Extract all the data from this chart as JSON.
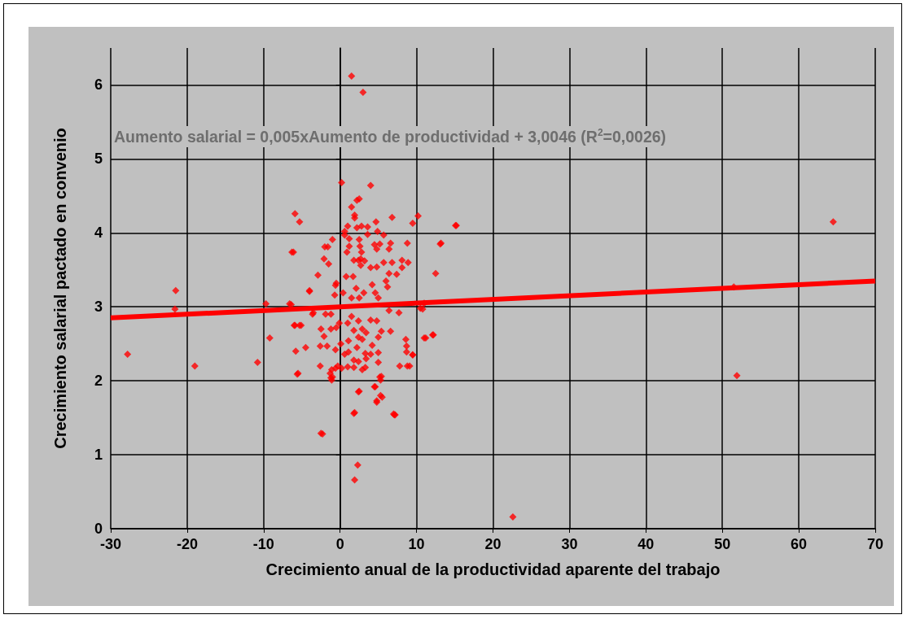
{
  "chart_data": {
    "type": "scatter",
    "xlabel": "Crecimiento anual de la productividad aparente del trabajo",
    "ylabel": "Crecimiento salarial pactado en convenio",
    "annotations": [
      "Aumento salarial = 0,005xAumento de productividad + 3,0046 (R$^{2}$=0,0026)"
    ],
    "xlim": [
      -30,
      70
    ],
    "xticks": [
      -30,
      -20,
      -10,
      0,
      10,
      20,
      30,
      40,
      50,
      60,
      70
    ],
    "ylim": [
      0,
      6.5
    ],
    "yticks": [
      0,
      1,
      2,
      3,
      4,
      5,
      6
    ],
    "grid": true,
    "marker": "diamond",
    "series": [
      {
        "color": "#ff0000",
        "x": [
          -27.8,
          -21.5,
          -21.6,
          -19,
          -10.8,
          -9.2,
          -9.7,
          -6.3,
          -6.6,
          -6,
          -5.3,
          -5.5,
          -4,
          -3.5,
          -2.5,
          -2.3,
          1.5,
          3,
          15.2,
          13.2,
          11,
          10.5,
          11.2,
          12.2,
          9.5,
          8.8,
          22.6,
          51.5,
          51.9,
          64.5,
          2.3,
          1.9,
          7,
          7.2,
          1.9,
          2.5,
          4.8,
          5.3,
          4.5,
          5.2,
          -1,
          -0.3,
          0.2,
          4,
          2.5,
          2.2,
          1.5,
          1.9,
          1.9,
          -5.9,
          -5.3,
          6.8,
          10.2,
          9.5,
          15.1,
          1,
          0.6,
          2.2,
          2.8,
          3.6,
          4.7,
          4.9,
          5.7,
          -1,
          0.6,
          1.2,
          1.2,
          0.9,
          -2,
          -1.6,
          3.6,
          2.5,
          2.6,
          2.8,
          2.7,
          4.5,
          5.2,
          4.8,
          6.6,
          6.4,
          8.8,
          13.1,
          -6.1,
          -2.1,
          -1.5,
          1.8,
          2.4,
          3.2,
          2.7,
          4,
          4.8,
          5.7,
          6.8,
          8.1,
          8.9,
          8.1,
          12.5,
          -2.9,
          -0.5,
          -0.6,
          0.8,
          1.7,
          2.1,
          4.2,
          6.4,
          7.4,
          6,
          6.2,
          -4,
          -0.7,
          0.4,
          1.5,
          3.1,
          4.6,
          5,
          2.5,
          -6.4,
          -3.6,
          -1.9,
          -1.2,
          1.5,
          6.4,
          7.7,
          10.8,
          -5.9,
          -5.1,
          -2.5,
          -1.2,
          -0.1,
          1,
          2.4,
          4,
          4.8,
          -0.5,
          1.8,
          2.9,
          3.4,
          5.4,
          6.6,
          -2.1,
          1.1,
          2.4,
          2.9,
          4.2,
          5,
          8.6,
          11,
          12.1,
          -2.6,
          -1.7,
          -0.6,
          0.1,
          1.1,
          0.6,
          2.2,
          3.3,
          4,
          5,
          8.7,
          8.7,
          9.5,
          -5.8,
          -4.5,
          1.8,
          2.4,
          3.4,
          5,
          2.9,
          3.3,
          1.8,
          -2.6,
          -1.1,
          -0.6,
          0.2,
          1,
          7.8,
          9.1,
          -5.6,
          -1.3,
          -1.2,
          -1.1,
          5.4,
          5.3,
          2.4,
          4.6,
          5.5,
          4.8,
          1.8,
          7.1
        ],
        "values": [
          2.36,
          3.22,
          2.97,
          2.2,
          2.25,
          2.58,
          3.04,
          3.74,
          3.04,
          2.75,
          2.75,
          2.1,
          3.22,
          2.92,
          1.29,
          1.28,
          6.12,
          5.9,
          4.1,
          3.86,
          3.05,
          2.98,
          2.58,
          2.62,
          2.35,
          2.2,
          0.16,
          3.27,
          2.07,
          4.15,
          0.86,
          0.66,
          1.55,
          1.54,
          1.57,
          1.86,
          1.73,
          1.8,
          1.92,
          2.05,
          2.05,
          2.2,
          4.68,
          4.64,
          4.46,
          4.44,
          4.35,
          4.24,
          4.2,
          4.26,
          4.15,
          4.21,
          4.23,
          4.13,
          4.1,
          4.09,
          4.02,
          4.07,
          4.09,
          4.08,
          4.15,
          4.02,
          3.97,
          3.91,
          3.97,
          3.92,
          3.82,
          3.74,
          3.81,
          3.81,
          3.98,
          3.91,
          3.82,
          3.74,
          3.65,
          3.84,
          3.85,
          3.78,
          3.86,
          3.78,
          3.86,
          3.85,
          3.74,
          3.65,
          3.58,
          3.63,
          3.63,
          3.62,
          3.56,
          3.53,
          3.54,
          3.6,
          3.6,
          3.63,
          3.6,
          3.53,
          3.45,
          3.43,
          3.32,
          3.29,
          3.41,
          3.41,
          3.25,
          3.3,
          3.45,
          3.44,
          3.35,
          3.27,
          3.21,
          3.16,
          3.19,
          3.12,
          3.19,
          3.19,
          3.12,
          3.12,
          3.03,
          2.9,
          2.9,
          2.9,
          2.87,
          2.95,
          2.92,
          2.97,
          2.75,
          2.75,
          2.7,
          2.7,
          2.78,
          2.78,
          2.81,
          2.82,
          2.81,
          2.72,
          2.68,
          2.7,
          2.65,
          2.67,
          2.67,
          2.6,
          2.54,
          2.59,
          2.56,
          2.48,
          2.59,
          2.56,
          2.58,
          2.62,
          2.47,
          2.47,
          2.42,
          2.5,
          2.39,
          2.36,
          2.45,
          2.37,
          2.36,
          2.38,
          2.47,
          2.39,
          2.35,
          2.4,
          2.45,
          2.28,
          2.26,
          2.3,
          2.25,
          2.15,
          2.18,
          2.18,
          2.2,
          2.15,
          2.17,
          2.17,
          2.19,
          2.2,
          2.2,
          2.09,
          2.1,
          2.04,
          2.01,
          2.06,
          2.01,
          1.85,
          1.92,
          1.78,
          1.71,
          1.56,
          1.54
        ]
      },
      {
        "type": "line",
        "color": "#ff0000",
        "marker": "none",
        "x": [
          -30,
          70
        ],
        "values": [
          2.85,
          3.35
        ]
      }
    ]
  }
}
